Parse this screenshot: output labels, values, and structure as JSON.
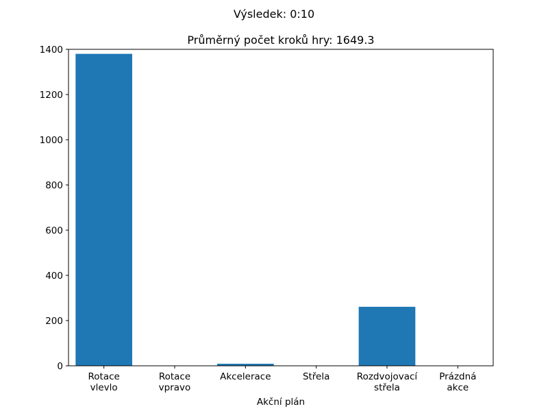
{
  "chart_data": {
    "type": "bar",
    "suptitle": "Výsledek: 0:10",
    "title": "Průměrný počet kroků hry: 1649.3",
    "xlabel": "Akční plán",
    "ylabel": "",
    "categories": [
      [
        "Rotace",
        "vlevlo"
      ],
      [
        "Rotace",
        "vpravo"
      ],
      [
        "Akcelerace"
      ],
      [
        "Střela"
      ],
      [
        "Rozdvojovací",
        "střela"
      ],
      [
        "Prázdná",
        "akce"
      ]
    ],
    "values": [
      1380,
      0,
      9,
      0,
      261,
      0
    ],
    "ylim": [
      0,
      1400
    ],
    "yticks": [
      0,
      200,
      400,
      600,
      800,
      1000,
      1200,
      1400
    ],
    "color": "#1f77b4",
    "grid": false,
    "legend": "none"
  }
}
